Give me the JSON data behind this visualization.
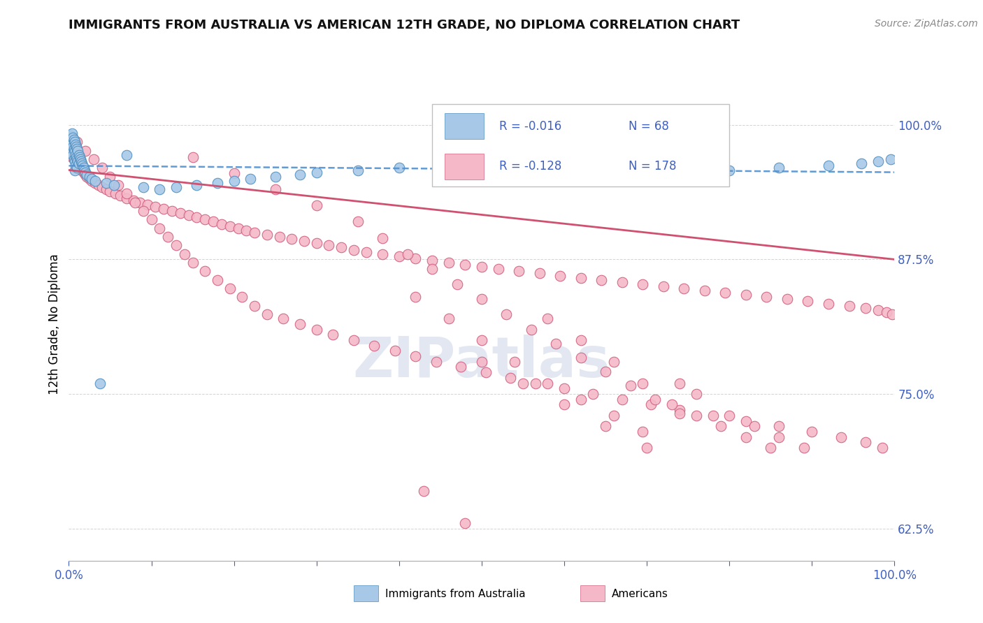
{
  "title": "IMMIGRANTS FROM AUSTRALIA VS AMERICAN 12TH GRADE, NO DIPLOMA CORRELATION CHART",
  "source": "Source: ZipAtlas.com",
  "ylabel": "12th Grade, No Diploma",
  "xlim": [
    0.0,
    1.0
  ],
  "ylim": [
    0.595,
    1.035
  ],
  "yticks": [
    0.625,
    0.75,
    0.875,
    1.0
  ],
  "ytick_labels": [
    "62.5%",
    "75.0%",
    "87.5%",
    "100.0%"
  ],
  "xticks": [
    0.0,
    0.1,
    0.2,
    0.3,
    0.4,
    0.5,
    0.6,
    0.7,
    0.8,
    0.9,
    1.0
  ],
  "xtick_labels_ends": [
    "0.0%",
    "100.0%"
  ],
  "legend_r1": "-0.016",
  "legend_n1": "68",
  "legend_r2": "-0.128",
  "legend_n2": "178",
  "color_blue": "#a8c8e8",
  "color_pink": "#f4b8c8",
  "edge_blue": "#5090c0",
  "edge_pink": "#d06080",
  "line_blue_color": "#5090d0",
  "line_pink_color": "#d05070",
  "text_blue": "#4060c0",
  "watermark": "ZIPatlas",
  "blue_trend": [
    0.962,
    0.956
  ],
  "pink_trend": [
    0.958,
    0.875
  ],
  "blue_x": [
    0.002,
    0.003,
    0.003,
    0.004,
    0.004,
    0.004,
    0.005,
    0.005,
    0.005,
    0.006,
    0.006,
    0.006,
    0.007,
    0.007,
    0.007,
    0.007,
    0.008,
    0.008,
    0.008,
    0.009,
    0.009,
    0.01,
    0.01,
    0.01,
    0.011,
    0.011,
    0.012,
    0.012,
    0.013,
    0.014,
    0.015,
    0.016,
    0.017,
    0.018,
    0.019,
    0.02,
    0.022,
    0.025,
    0.028,
    0.032,
    0.038,
    0.045,
    0.055,
    0.07,
    0.09,
    0.11,
    0.13,
    0.155,
    0.18,
    0.2,
    0.22,
    0.25,
    0.28,
    0.3,
    0.35,
    0.4,
    0.45,
    0.5,
    0.56,
    0.62,
    0.68,
    0.74,
    0.8,
    0.86,
    0.92,
    0.96,
    0.98,
    0.995
  ],
  "blue_y": [
    0.99,
    0.985,
    0.978,
    0.992,
    0.982,
    0.975,
    0.988,
    0.98,
    0.972,
    0.986,
    0.978,
    0.968,
    0.984,
    0.976,
    0.966,
    0.958,
    0.982,
    0.972,
    0.962,
    0.98,
    0.97,
    0.978,
    0.968,
    0.96,
    0.976,
    0.966,
    0.972,
    0.964,
    0.97,
    0.968,
    0.966,
    0.964,
    0.962,
    0.96,
    0.958,
    0.956,
    0.954,
    0.952,
    0.95,
    0.948,
    0.76,
    0.946,
    0.944,
    0.972,
    0.942,
    0.94,
    0.942,
    0.944,
    0.946,
    0.948,
    0.95,
    0.952,
    0.954,
    0.956,
    0.958,
    0.96,
    0.962,
    0.964,
    0.966,
    0.968,
    0.97,
    0.972,
    0.958,
    0.96,
    0.962,
    0.964,
    0.966,
    0.968
  ],
  "pink_x": [
    0.004,
    0.005,
    0.006,
    0.007,
    0.008,
    0.009,
    0.01,
    0.011,
    0.012,
    0.013,
    0.014,
    0.015,
    0.016,
    0.018,
    0.02,
    0.022,
    0.025,
    0.028,
    0.032,
    0.036,
    0.04,
    0.045,
    0.05,
    0.056,
    0.062,
    0.07,
    0.078,
    0.086,
    0.095,
    0.105,
    0.115,
    0.125,
    0.135,
    0.145,
    0.155,
    0.165,
    0.175,
    0.185,
    0.195,
    0.205,
    0.215,
    0.225,
    0.24,
    0.255,
    0.27,
    0.285,
    0.3,
    0.315,
    0.33,
    0.345,
    0.36,
    0.38,
    0.4,
    0.42,
    0.44,
    0.46,
    0.48,
    0.5,
    0.52,
    0.545,
    0.57,
    0.595,
    0.62,
    0.645,
    0.67,
    0.695,
    0.72,
    0.745,
    0.77,
    0.795,
    0.82,
    0.845,
    0.87,
    0.895,
    0.92,
    0.945,
    0.965,
    0.98,
    0.99,
    0.997,
    0.01,
    0.02,
    0.03,
    0.04,
    0.05,
    0.06,
    0.07,
    0.08,
    0.09,
    0.1,
    0.11,
    0.12,
    0.13,
    0.14,
    0.15,
    0.165,
    0.18,
    0.195,
    0.21,
    0.225,
    0.24,
    0.26,
    0.28,
    0.3,
    0.32,
    0.345,
    0.37,
    0.395,
    0.42,
    0.445,
    0.475,
    0.505,
    0.535,
    0.565,
    0.6,
    0.635,
    0.67,
    0.705,
    0.74,
    0.78,
    0.82,
    0.86,
    0.9,
    0.935,
    0.965,
    0.985,
    0.5,
    0.55,
    0.6,
    0.65,
    0.7,
    0.74,
    0.76,
    0.8,
    0.83,
    0.86,
    0.89,
    0.58,
    0.62,
    0.66,
    0.695,
    0.73,
    0.76,
    0.79,
    0.82,
    0.85,
    0.42,
    0.46,
    0.5,
    0.54,
    0.58,
    0.62,
    0.66,
    0.695,
    0.15,
    0.2,
    0.25,
    0.3,
    0.35,
    0.38,
    0.41,
    0.44,
    0.47,
    0.5,
    0.53,
    0.56,
    0.59,
    0.62,
    0.65,
    0.68,
    0.71,
    0.74,
    0.43,
    0.48
  ],
  "pink_y": [
    0.97,
    0.975,
    0.968,
    0.972,
    0.966,
    0.97,
    0.964,
    0.968,
    0.962,
    0.966,
    0.96,
    0.964,
    0.958,
    0.956,
    0.954,
    0.952,
    0.95,
    0.948,
    0.946,
    0.944,
    0.942,
    0.94,
    0.938,
    0.936,
    0.934,
    0.932,
    0.93,
    0.928,
    0.926,
    0.924,
    0.922,
    0.92,
    0.918,
    0.916,
    0.914,
    0.912,
    0.91,
    0.908,
    0.906,
    0.904,
    0.902,
    0.9,
    0.898,
    0.896,
    0.894,
    0.892,
    0.89,
    0.888,
    0.886,
    0.884,
    0.882,
    0.88,
    0.878,
    0.876,
    0.874,
    0.872,
    0.87,
    0.868,
    0.866,
    0.864,
    0.862,
    0.86,
    0.858,
    0.856,
    0.854,
    0.852,
    0.85,
    0.848,
    0.846,
    0.844,
    0.842,
    0.84,
    0.838,
    0.836,
    0.834,
    0.832,
    0.83,
    0.828,
    0.826,
    0.824,
    0.984,
    0.976,
    0.968,
    0.96,
    0.952,
    0.944,
    0.936,
    0.928,
    0.92,
    0.912,
    0.904,
    0.896,
    0.888,
    0.88,
    0.872,
    0.864,
    0.856,
    0.848,
    0.84,
    0.832,
    0.824,
    0.82,
    0.815,
    0.81,
    0.805,
    0.8,
    0.795,
    0.79,
    0.785,
    0.78,
    0.775,
    0.77,
    0.765,
    0.76,
    0.755,
    0.75,
    0.745,
    0.74,
    0.735,
    0.73,
    0.725,
    0.72,
    0.715,
    0.71,
    0.705,
    0.7,
    0.78,
    0.76,
    0.74,
    0.72,
    0.7,
    0.76,
    0.75,
    0.73,
    0.72,
    0.71,
    0.7,
    0.82,
    0.8,
    0.78,
    0.76,
    0.74,
    0.73,
    0.72,
    0.71,
    0.7,
    0.84,
    0.82,
    0.8,
    0.78,
    0.76,
    0.745,
    0.73,
    0.715,
    0.97,
    0.955,
    0.94,
    0.925,
    0.91,
    0.895,
    0.88,
    0.866,
    0.852,
    0.838,
    0.824,
    0.81,
    0.797,
    0.784,
    0.771,
    0.758,
    0.745,
    0.732,
    0.66,
    0.63
  ]
}
